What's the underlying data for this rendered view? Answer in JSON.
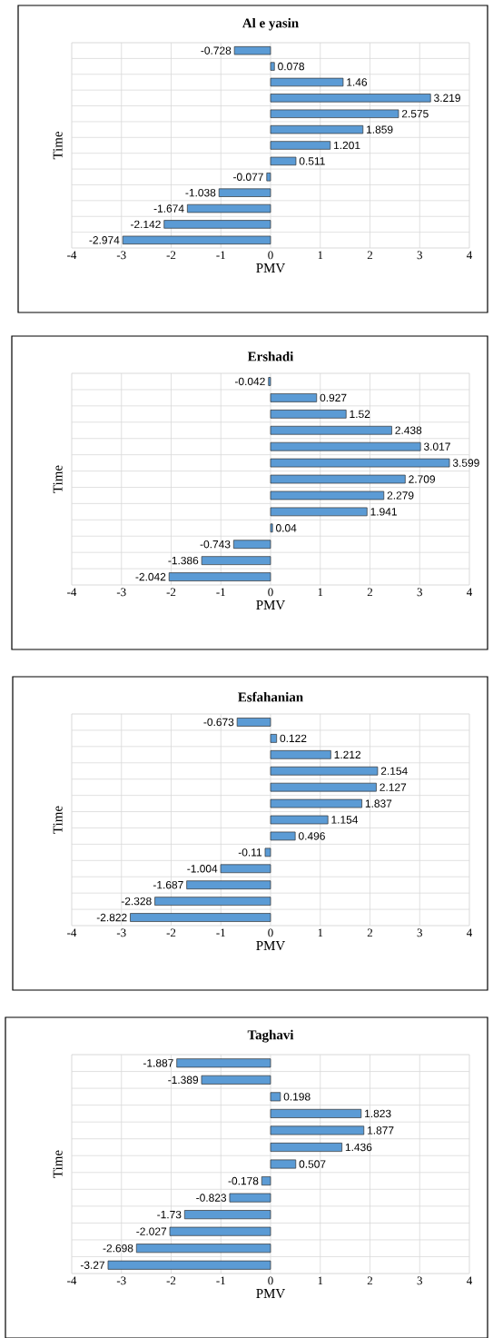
{
  "chart_data": [
    {
      "type": "bar",
      "orientation": "horizontal",
      "title": "Al e yasin",
      "xlabel": "PMV",
      "ylabel": "Time",
      "categories": [
        null,
        null,
        null,
        null,
        null,
        null,
        null,
        null,
        null,
        null,
        null,
        null,
        null
      ],
      "values": [
        -0.728,
        0.078,
        1.46,
        3.219,
        2.575,
        1.859,
        1.201,
        0.511,
        -0.077,
        -1.038,
        -1.674,
        -2.142,
        -2.974
      ],
      "color": "#5b9bd5",
      "xlim": [
        -4,
        4
      ],
      "xticks": [
        -4,
        -3,
        -2,
        -1,
        0,
        1,
        2,
        3,
        4
      ],
      "grid": true,
      "data_labels": true,
      "tick_labels": "x"
    },
    {
      "type": "bar",
      "orientation": "horizontal",
      "title": "Ershadi",
      "xlabel": "PMV",
      "ylabel": "Time",
      "categories": [
        null,
        null,
        null,
        null,
        null,
        null,
        null,
        null,
        null,
        null,
        null,
        null,
        null
      ],
      "values": [
        -0.042,
        0.927,
        1.52,
        2.438,
        3.017,
        3.599,
        2.709,
        2.279,
        1.941,
        0.04,
        -0.743,
        -1.386,
        -2.042
      ],
      "color": "#5b9bd5",
      "xlim": [
        -4,
        4
      ],
      "xticks": [
        -4,
        -3,
        -2,
        -1,
        0,
        1,
        2,
        3,
        4
      ],
      "grid": true,
      "data_labels": true,
      "tick_labels": "x"
    },
    {
      "type": "bar",
      "orientation": "horizontal",
      "title": "Esfahanian",
      "xlabel": "PMV",
      "ylabel": "Time",
      "categories": [
        null,
        null,
        null,
        null,
        null,
        null,
        null,
        null,
        null,
        null,
        null,
        null,
        null
      ],
      "values": [
        -0.673,
        0.122,
        1.212,
        2.154,
        2.127,
        1.837,
        1.154,
        0.496,
        -0.11,
        -1.004,
        -1.687,
        -2.328,
        -2.822
      ],
      "color": "#5b9bd5",
      "xlim": [
        -4,
        4
      ],
      "xticks": [
        -4,
        -3,
        -2,
        -1,
        0,
        1,
        2,
        3,
        4
      ],
      "grid": true,
      "data_labels": true,
      "tick_labels": "x"
    },
    {
      "type": "bar",
      "orientation": "horizontal",
      "title": "Taghavi",
      "xlabel": "PMV",
      "ylabel": "Time",
      "categories": [
        null,
        null,
        null,
        null,
        null,
        null,
        null,
        null,
        null,
        null,
        null,
        null,
        null
      ],
      "values": [
        -1.887,
        -1.389,
        0.198,
        1.823,
        1.877,
        1.436,
        0.507,
        -0.178,
        -0.823,
        -1.73,
        -2.027,
        -2.698,
        -3.27
      ],
      "color": "#5b9bd5",
      "xlim": [
        -4,
        4
      ],
      "xticks": [
        -4,
        -3,
        -2,
        -1,
        0,
        1,
        2,
        3,
        4
      ],
      "grid": true,
      "data_labels": true,
      "tick_labels": "x"
    }
  ]
}
